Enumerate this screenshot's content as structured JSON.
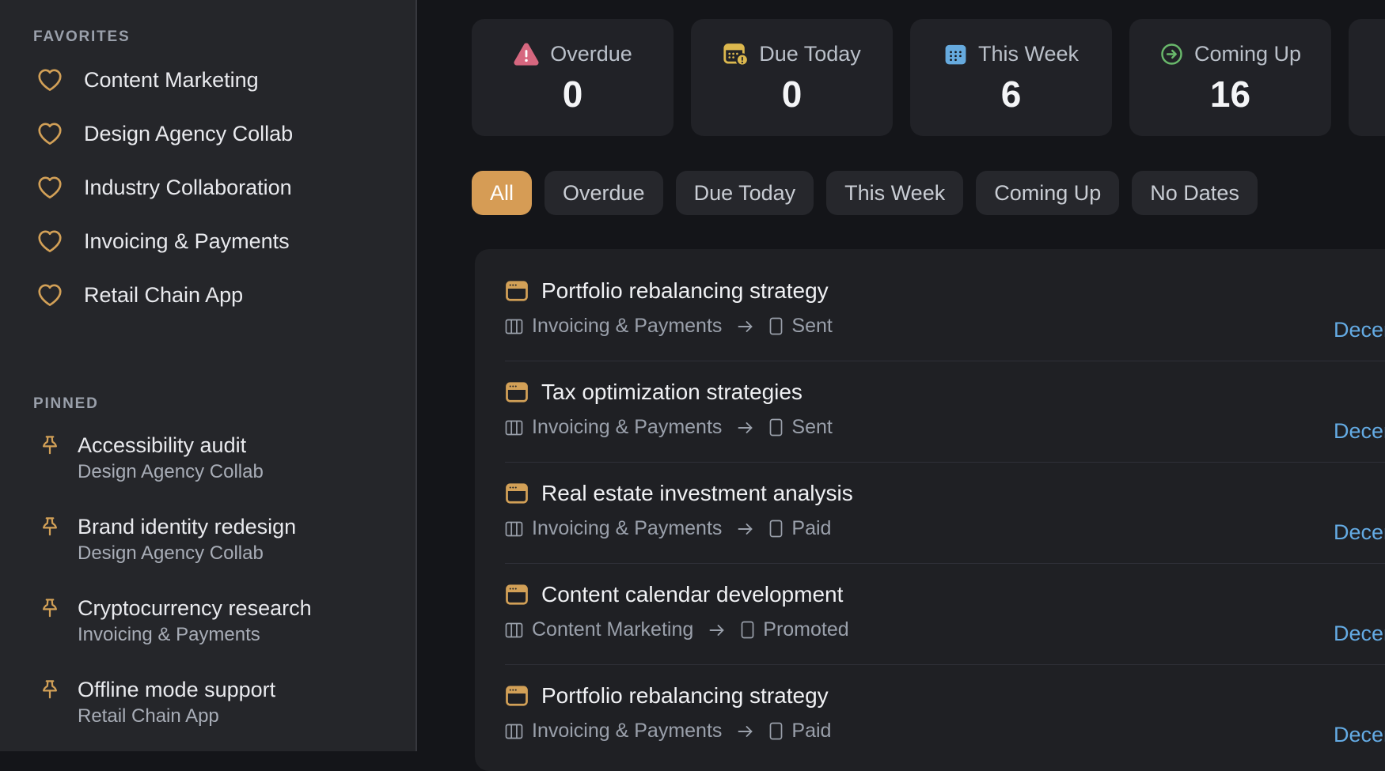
{
  "colors": {
    "accent_gold": "#d2a057",
    "chip_active": "#d69c55",
    "date_text": "#64abe4",
    "overdue_icon": "#d6677f",
    "due_today_icon": "#dcb84e",
    "this_week_icon": "#66aade",
    "coming_up_icon": "#69b86b"
  },
  "sidebar": {
    "favorites_header": "FAVORITES",
    "pinned_header": "PINNED",
    "favorites": [
      {
        "label": "Content Marketing"
      },
      {
        "label": "Design Agency Collab"
      },
      {
        "label": "Industry Collaboration"
      },
      {
        "label": "Invoicing & Payments"
      },
      {
        "label": "Retail Chain App"
      }
    ],
    "pinned": [
      {
        "title": "Accessibility audit",
        "project": "Design Agency Collab"
      },
      {
        "title": "Brand identity redesign",
        "project": "Design Agency Collab"
      },
      {
        "title": "Cryptocurrency research",
        "project": "Invoicing & Payments"
      },
      {
        "title": "Offline mode support",
        "project": "Retail Chain App"
      }
    ]
  },
  "stats": {
    "cards": [
      {
        "label": "Overdue",
        "value": "0",
        "icon": "warning-triangle-icon"
      },
      {
        "label": "Due Today",
        "value": "0",
        "icon": "calendar-alert-icon"
      },
      {
        "label": "This Week",
        "value": "6",
        "icon": "calendar-icon"
      },
      {
        "label": "Coming Up",
        "value": "16",
        "icon": "arrow-right-circle-icon"
      },
      {
        "label": "",
        "value": "",
        "icon": ""
      }
    ]
  },
  "filters": {
    "chips": [
      {
        "label": "All",
        "active": true
      },
      {
        "label": "Overdue",
        "active": false
      },
      {
        "label": "Due Today",
        "active": false
      },
      {
        "label": "This Week",
        "active": false
      },
      {
        "label": "Coming Up",
        "active": false
      },
      {
        "label": "No Dates",
        "active": false
      }
    ]
  },
  "tasks": {
    "rows": [
      {
        "title": "Portfolio rebalancing strategy",
        "board": "Invoicing & Payments",
        "status": "Sent",
        "date": "Decem"
      },
      {
        "title": "Tax optimization strategies",
        "board": "Invoicing & Payments",
        "status": "Sent",
        "date": "Decem"
      },
      {
        "title": "Real estate investment analysis",
        "board": "Invoicing & Payments",
        "status": "Paid",
        "date": "Decem"
      },
      {
        "title": "Content calendar development",
        "board": "Content Marketing",
        "status": "Promoted",
        "date": "Decem"
      },
      {
        "title": "Portfolio rebalancing strategy",
        "board": "Invoicing & Payments",
        "status": "Paid",
        "date": "Decem"
      }
    ]
  }
}
